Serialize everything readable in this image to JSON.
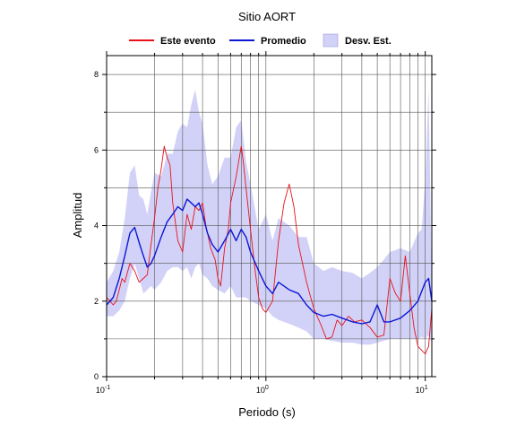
{
  "chart_data": {
    "type": "line",
    "title": "Sitio AORT",
    "xlabel": "Periodo (s)",
    "ylabel": "Amplitud",
    "xscale": "log",
    "xlim": [
      0.1,
      11
    ],
    "ylim": [
      0,
      8.5
    ],
    "x_ticks": [
      {
        "value": 0.1,
        "base": "10",
        "exp": "-1"
      },
      {
        "value": 1,
        "base": "10",
        "exp": "0"
      },
      {
        "value": 10,
        "base": "10",
        "exp": "1"
      }
    ],
    "y_ticks": [
      0,
      2,
      4,
      6,
      8
    ],
    "grid": true,
    "legend": {
      "position": "top",
      "items": [
        {
          "label": "Este evento",
          "kind": "line",
          "color": "#e8111a"
        },
        {
          "label": "Promedio",
          "kind": "line",
          "color": "#0b16d6"
        },
        {
          "label": "Desv. Est.",
          "kind": "band",
          "color": "#d2d2f8"
        }
      ]
    },
    "series": [
      {
        "name": "Este evento",
        "color": "#e8111a",
        "x": [
          0.1,
          0.105,
          0.11,
          0.115,
          0.12,
          0.125,
          0.13,
          0.14,
          0.15,
          0.16,
          0.17,
          0.18,
          0.19,
          0.2,
          0.21,
          0.22,
          0.23,
          0.24,
          0.25,
          0.26,
          0.28,
          0.3,
          0.32,
          0.34,
          0.36,
          0.38,
          0.4,
          0.42,
          0.45,
          0.48,
          0.5,
          0.52,
          0.55,
          0.58,
          0.6,
          0.65,
          0.7,
          0.72,
          0.75,
          0.8,
          0.85,
          0.9,
          0.95,
          1.0,
          1.1,
          1.2,
          1.3,
          1.4,
          1.5,
          1.6,
          1.8,
          2.0,
          2.2,
          2.4,
          2.6,
          2.8,
          3.0,
          3.3,
          3.6,
          4.0,
          4.5,
          5.0,
          5.5,
          6.0,
          6.5,
          7.0,
          7.5,
          8.0,
          8.5,
          9.0,
          9.5,
          10.0,
          10.5,
          11.0
        ],
        "y": [
          2.1,
          2.0,
          1.9,
          2.0,
          2.3,
          2.6,
          2.5,
          3.0,
          2.8,
          2.5,
          2.6,
          2.7,
          3.5,
          4.2,
          5.0,
          5.5,
          6.1,
          5.8,
          5.6,
          4.6,
          3.6,
          3.3,
          4.3,
          3.9,
          4.5,
          4.4,
          4.6,
          4.0,
          3.4,
          3.1,
          2.6,
          2.4,
          3.4,
          3.9,
          4.6,
          5.3,
          6.1,
          5.7,
          5.0,
          3.9,
          2.9,
          2.1,
          1.8,
          1.7,
          2.0,
          3.6,
          4.6,
          5.1,
          4.5,
          3.5,
          2.5,
          1.8,
          1.4,
          1.0,
          1.05,
          1.5,
          1.35,
          1.6,
          1.45,
          1.5,
          1.3,
          1.05,
          1.1,
          2.6,
          2.2,
          2.0,
          3.2,
          2.2,
          1.3,
          0.8,
          0.7,
          0.6,
          0.8,
          1.8
        ]
      },
      {
        "name": "Promedio",
        "color": "#0b16d6",
        "x": [
          0.1,
          0.11,
          0.12,
          0.13,
          0.14,
          0.15,
          0.16,
          0.17,
          0.18,
          0.19,
          0.2,
          0.22,
          0.24,
          0.26,
          0.28,
          0.3,
          0.32,
          0.34,
          0.36,
          0.38,
          0.4,
          0.43,
          0.46,
          0.5,
          0.55,
          0.6,
          0.65,
          0.7,
          0.75,
          0.8,
          0.9,
          1.0,
          1.1,
          1.2,
          1.4,
          1.6,
          1.8,
          2.0,
          2.3,
          2.6,
          3.0,
          3.5,
          4.0,
          4.5,
          5.0,
          5.5,
          6.0,
          7.0,
          8.0,
          9.0,
          10.0,
          10.5,
          11.0
        ],
        "y": [
          1.9,
          2.1,
          2.6,
          3.2,
          3.8,
          3.95,
          3.55,
          3.2,
          2.9,
          3.0,
          3.2,
          3.7,
          4.1,
          4.3,
          4.5,
          4.4,
          4.7,
          4.6,
          4.5,
          4.6,
          4.3,
          3.8,
          3.5,
          3.3,
          3.6,
          3.9,
          3.6,
          3.9,
          3.7,
          3.3,
          2.8,
          2.4,
          2.2,
          2.5,
          2.3,
          2.2,
          1.9,
          1.7,
          1.6,
          1.65,
          1.55,
          1.45,
          1.4,
          1.45,
          1.9,
          1.45,
          1.45,
          1.55,
          1.75,
          2.0,
          2.5,
          2.6,
          2.0
        ]
      }
    ],
    "band": {
      "name": "Desv. Est.",
      "color": "#d2d2f8",
      "x": [
        0.1,
        0.11,
        0.12,
        0.13,
        0.14,
        0.15,
        0.16,
        0.17,
        0.18,
        0.19,
        0.2,
        0.22,
        0.24,
        0.26,
        0.28,
        0.3,
        0.32,
        0.34,
        0.36,
        0.38,
        0.4,
        0.43,
        0.46,
        0.5,
        0.55,
        0.6,
        0.65,
        0.7,
        0.75,
        0.8,
        0.9,
        1.0,
        1.1,
        1.2,
        1.4,
        1.6,
        1.8,
        2.0,
        2.3,
        2.6,
        3.0,
        3.5,
        4.0,
        4.5,
        5.0,
        5.5,
        6.0,
        7.0,
        8.0,
        9.0,
        9.5,
        10.0,
        10.5,
        11.0
      ],
      "upper": [
        2.5,
        2.8,
        3.3,
        4.2,
        5.4,
        5.6,
        4.8,
        4.7,
        4.3,
        4.9,
        5.4,
        5.3,
        5.9,
        5.9,
        6.5,
        6.7,
        6.6,
        7.2,
        7.6,
        7.0,
        6.7,
        5.6,
        5.1,
        5.3,
        5.8,
        5.8,
        6.6,
        6.8,
        5.7,
        5.1,
        3.9,
        4.3,
        3.6,
        4.2,
        4.0,
        3.7,
        3.7,
        3.0,
        2.8,
        2.9,
        2.8,
        2.75,
        2.6,
        2.75,
        2.9,
        3.1,
        3.3,
        3.4,
        3.3,
        3.8,
        3.9,
        5.2,
        7.6,
        2.4
      ],
      "lower": [
        1.6,
        1.6,
        1.75,
        2.0,
        2.6,
        3.0,
        2.6,
        2.2,
        2.3,
        2.4,
        2.3,
        2.5,
        2.8,
        2.9,
        2.9,
        2.8,
        2.9,
        2.6,
        2.9,
        3.0,
        2.7,
        2.6,
        2.4,
        2.3,
        2.2,
        2.4,
        2.1,
        2.1,
        2.1,
        2.0,
        1.9,
        1.8,
        1.6,
        1.5,
        1.4,
        1.3,
        1.2,
        1.0,
        1.0,
        0.95,
        0.9,
        0.9,
        0.85,
        0.85,
        0.9,
        0.95,
        1.0,
        1.0,
        1.0,
        1.0,
        1.05,
        1.0,
        1.1,
        0.9
      ]
    }
  }
}
